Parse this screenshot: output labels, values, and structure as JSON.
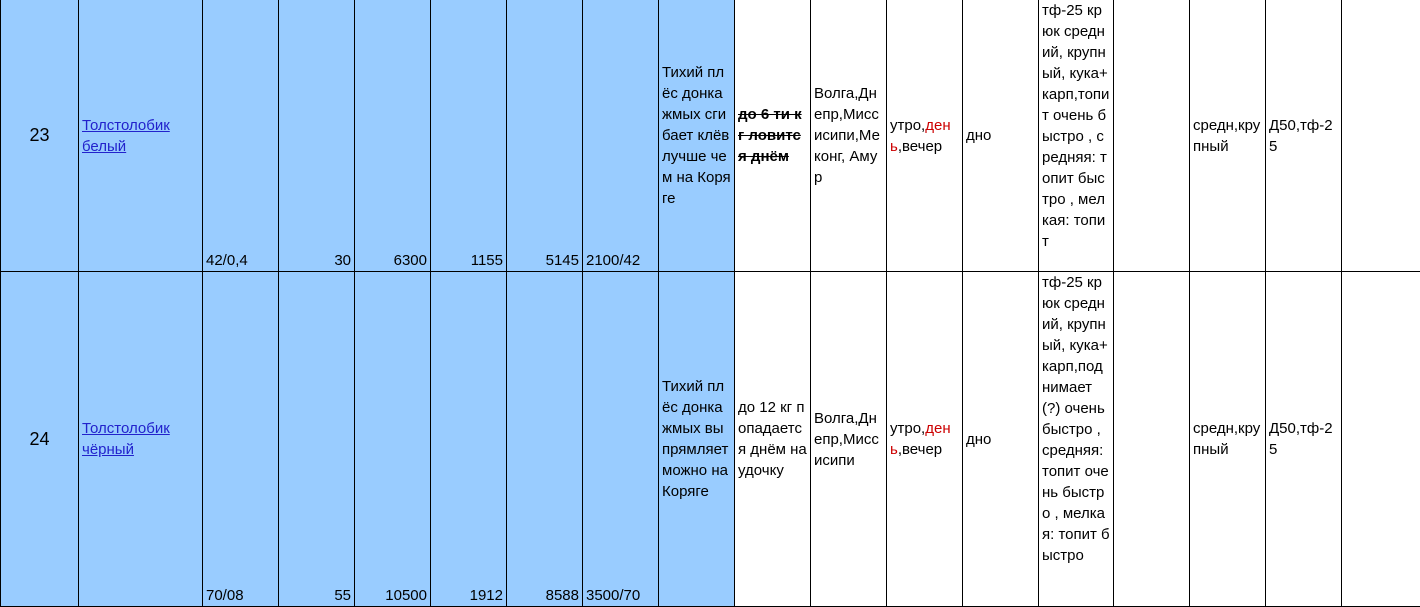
{
  "table": {
    "rows": [
      [
        "23",
        "Толстолобик белый",
        "42/0,4",
        "30",
        "6300",
        "1155",
        "5145",
        "2100/42",
        "Тихий плёс донка жмых сгибает клёв лучше чем на Коряге",
        "до 6 ти кг ловится днём",
        "Волга,Днепр,Миссисипи,Меконг, Амур",
        [
          "утро,",
          "день",
          ",вечер"
        ],
        "дно",
        "тф-25 крюк средний, крупный, кука+карп,топит очень быстро , средняя: топит быстро , мелкая: топит",
        null,
        "средн,крупный",
        "Д50,тф-25",
        null
      ],
      [
        "24",
        "Толстолобик чёрный",
        "70/08",
        "55",
        "10500",
        "1912",
        "8588",
        "3500/70",
        "Тихий плёс донка жмых выпрямляет можно на Коряге",
        "до 12 кг попадается днём на удочку",
        "Волга,Днепр,Миссисипи",
        [
          "утро,",
          "день",
          ",вечер"
        ],
        "дно",
        "тф-25 крюк средний, крупный, кука+карп,поднимает (?) очень быстро , средняя: топит очень быстро , мелкая: топит быстро",
        null,
        "средн,крупный",
        "Д50,тф-25",
        null
      ]
    ]
  }
}
